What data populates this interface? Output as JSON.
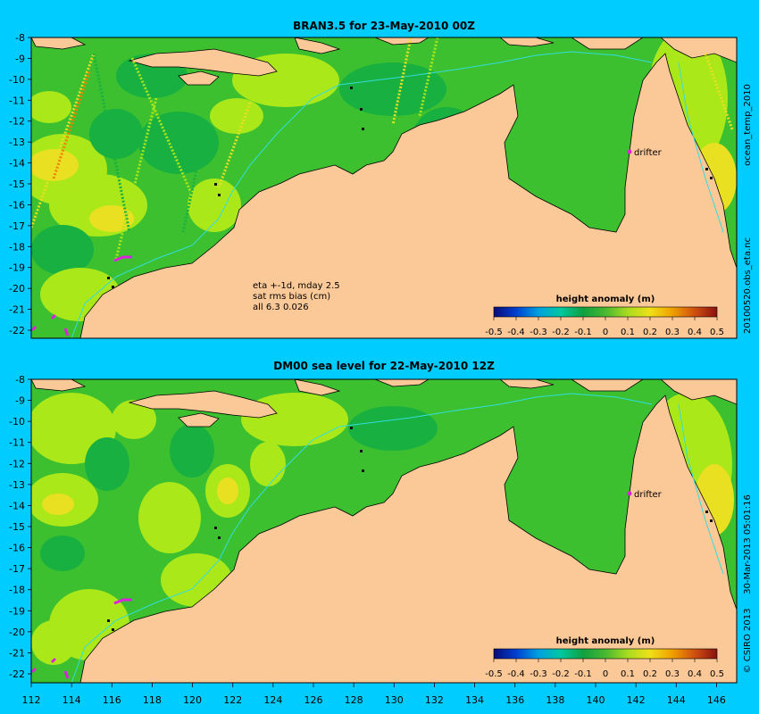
{
  "colors": {
    "background": "#00ccff",
    "land": "#fbc897",
    "coast": "#000000",
    "isobath": "#33dddd",
    "drifter": "#dd22dd",
    "obs_marker": "#111111",
    "colormap": [
      "#0a0a78",
      "#0040d0",
      "#00a0e0",
      "#00c8a0",
      "#10a040",
      "#48b830",
      "#90d020",
      "#d8e818",
      "#f0c800",
      "#e88000",
      "#c84010",
      "#8a1010"
    ],
    "field_low": "#18b040",
    "field_mid": "#3cc030",
    "field_high": "#aae81a",
    "field_peak": "#e8e020"
  },
  "panels": [
    {
      "title": "BRAN3.5 for 23-May-2010 00Z",
      "right_label": "ocean_temp_2010",
      "right_label_lower": "20100520.obs_eta.nc",
      "annotations": [
        "eta +-1d, mday 2.5",
        "sat rms bias (cm)",
        "all 6.3 0.026"
      ],
      "drifter_label": "drifter",
      "colorbar_title": "height anomaly (m)",
      "has_tracks": true
    },
    {
      "title": "DM00 sea level  for 22-May-2010 12Z",
      "right_label": "30-Mar-2013 05:01:16",
      "right_label_lower": "© CSIRO 2013",
      "annotations": [],
      "drifter_label": "drifter",
      "colorbar_title": "height anomaly (m)",
      "has_tracks": false
    }
  ],
  "colorbar_ticks": [
    "-0.5",
    "-0.4",
    "-0.3",
    "-0.2",
    "-0.1",
    "0",
    "0.1",
    "0.2",
    "0.3",
    "0.4",
    "0.5"
  ],
  "lat_ticks": [
    "-8",
    "-9",
    "-10",
    "-11",
    "-12",
    "-13",
    "-14",
    "-15",
    "-16",
    "-17",
    "-18",
    "-19",
    "-20",
    "-21",
    "-22"
  ],
  "lon_ticks": [
    "112",
    "114",
    "116",
    "118",
    "120",
    "122",
    "124",
    "126",
    "128",
    "130",
    "132",
    "134",
    "136",
    "138",
    "140",
    "142",
    "144",
    "146"
  ],
  "map_extent": {
    "lon_min": 112,
    "lon_max": 147,
    "lat_min": -22.3,
    "lat_max": -8
  }
}
